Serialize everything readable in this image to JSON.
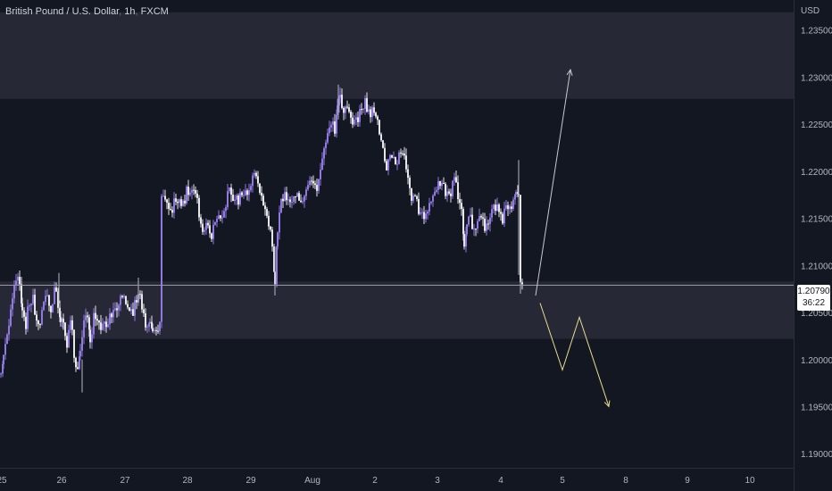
{
  "header": {
    "symbol": "British Pound / U.S. Dollar",
    "interval": "1h",
    "exchange": "FXCM",
    "currency": "USD"
  },
  "price_tag": {
    "price": "1.20790",
    "countdown": "36:22"
  },
  "colors": {
    "background": "#131722",
    "zone": "#262935",
    "up_candle": "#8f78e0",
    "down_candle": "#e6e6ea",
    "bullish_arrow": "#c9c9cf",
    "bearish_arrow": "#e6dc8c",
    "price_line": "#9598a1"
  },
  "chart_data": {
    "type": "candlestick",
    "ylim": [
      1.1885,
      1.2382
    ],
    "y_ticks": [
      "1.23500",
      "1.23000",
      "1.22500",
      "1.22000",
      "1.21500",
      "1.21000",
      "1.20500",
      "1.20000",
      "1.19500",
      "1.19000"
    ],
    "x_ticks": [
      "25",
      "26",
      "27",
      "28",
      "29",
      "Aug",
      "2",
      "3",
      "4",
      "5",
      "8",
      "9",
      "10"
    ],
    "last_price": 1.2079,
    "zones": [
      {
        "from": 1.2277,
        "to": 1.2369
      },
      {
        "from": 1.2022,
        "to": 1.2083
      }
    ],
    "anchors": [
      [
        0,
        1.1985
      ],
      [
        3,
        1.2
      ],
      [
        7,
        1.2025
      ],
      [
        11,
        1.2055
      ],
      [
        15,
        1.2075
      ],
      [
        19,
        1.2085
      ],
      [
        24,
        1.206
      ],
      [
        28,
        1.204
      ],
      [
        32,
        1.2055
      ],
      [
        36,
        1.206
      ],
      [
        40,
        1.2045
      ],
      [
        44,
        1.204
      ],
      [
        48,
        1.206
      ],
      [
        52,
        1.207
      ],
      [
        56,
        1.2055
      ],
      [
        60,
        1.2075
      ],
      [
        64,
        1.2055
      ],
      [
        67,
        1.204
      ],
      [
        70,
        1.2045
      ],
      [
        74,
        1.202
      ],
      [
        78,
        1.204
      ],
      [
        82,
        1.201
      ],
      [
        86,
        1.199
      ],
      [
        89,
        1.201
      ],
      [
        93,
        1.2035
      ],
      [
        97,
        1.2045
      ],
      [
        100,
        1.2025
      ],
      [
        104,
        1.2045
      ],
      [
        108,
        1.2035
      ],
      [
        112,
        1.204
      ],
      [
        116,
        1.2045
      ],
      [
        120,
        1.2035
      ],
      [
        124,
        1.2045
      ],
      [
        128,
        1.2055
      ],
      [
        132,
        1.206
      ],
      [
        136,
        1.2065
      ],
      [
        140,
        1.2055
      ],
      [
        144,
        1.206
      ],
      [
        148,
        1.205
      ],
      [
        152,
        1.206
      ],
      [
        156,
        1.207
      ],
      [
        160,
        1.205
      ],
      [
        164,
        1.2035
      ],
      [
        167,
        1.204
      ],
      [
        170,
        1.203
      ],
      [
        174,
        1.2035
      ],
      [
        178,
        1.204
      ],
      [
        180,
        1.2165
      ],
      [
        184,
        1.217
      ],
      [
        188,
        1.2165
      ],
      [
        192,
        1.216
      ],
      [
        196,
        1.2165
      ],
      [
        200,
        1.2165
      ],
      [
        204,
        1.217
      ],
      [
        208,
        1.2175
      ],
      [
        212,
        1.217
      ],
      [
        216,
        1.218
      ],
      [
        220,
        1.2175
      ],
      [
        224,
        1.214
      ],
      [
        228,
        1.213
      ],
      [
        232,
        1.2145
      ],
      [
        236,
        1.2135
      ],
      [
        240,
        1.214
      ],
      [
        244,
        1.215
      ],
      [
        248,
        1.2155
      ],
      [
        252,
        1.2165
      ],
      [
        256,
        1.2175
      ],
      [
        260,
        1.2172
      ],
      [
        264,
        1.2175
      ],
      [
        268,
        1.2172
      ],
      [
        272,
        1.217
      ],
      [
        276,
        1.218
      ],
      [
        280,
        1.219
      ],
      [
        284,
        1.2195
      ],
      [
        288,
        1.2185
      ],
      [
        292,
        1.2175
      ],
      [
        296,
        1.216
      ],
      [
        300,
        1.214
      ],
      [
        304,
        1.212
      ],
      [
        307,
        1.208
      ],
      [
        310,
        1.214
      ],
      [
        314,
        1.2165
      ],
      [
        318,
        1.217
      ],
      [
        322,
        1.2172
      ],
      [
        326,
        1.217
      ],
      [
        330,
        1.2165
      ],
      [
        334,
        1.2175
      ],
      [
        338,
        1.2172
      ],
      [
        342,
        1.2178
      ],
      [
        346,
        1.2185
      ],
      [
        350,
        1.219
      ],
      [
        354,
        1.2185
      ],
      [
        358,
        1.22
      ],
      [
        362,
        1.222
      ],
      [
        366,
        1.2245
      ],
      [
        370,
        1.225
      ],
      [
        374,
        1.224
      ],
      [
        377,
        1.227
      ],
      [
        380,
        1.2282
      ],
      [
        384,
        1.227
      ],
      [
        388,
        1.2262
      ],
      [
        392,
        1.2255
      ],
      [
        396,
        1.2258
      ],
      [
        400,
        1.226
      ],
      [
        404,
        1.2262
      ],
      [
        408,
        1.227
      ],
      [
        412,
        1.2268
      ],
      [
        416,
        1.226
      ],
      [
        420,
        1.2255
      ],
      [
        424,
        1.2248
      ],
      [
        428,
        1.2225
      ],
      [
        432,
        1.22
      ],
      [
        436,
        1.2212
      ],
      [
        440,
        1.2222
      ],
      [
        444,
        1.221
      ],
      [
        448,
        1.2215
      ],
      [
        452,
        1.221
      ],
      [
        456,
        1.22
      ],
      [
        460,
        1.2175
      ],
      [
        464,
        1.2165
      ],
      [
        468,
        1.216
      ],
      [
        472,
        1.2158
      ],
      [
        476,
        1.215
      ],
      [
        480,
        1.216
      ],
      [
        484,
        1.2175
      ],
      [
        488,
        1.2185
      ],
      [
        492,
        1.218
      ],
      [
        496,
        1.2178
      ],
      [
        500,
        1.2182
      ],
      [
        504,
        1.218
      ],
      [
        508,
        1.2185
      ],
      [
        512,
        1.2175
      ],
      [
        516,
        1.216
      ],
      [
        519,
        1.212
      ],
      [
        522,
        1.214
      ],
      [
        526,
        1.215
      ],
      [
        530,
        1.2145
      ],
      [
        534,
        1.215
      ],
      [
        538,
        1.2148
      ],
      [
        542,
        1.2145
      ],
      [
        546,
        1.215
      ],
      [
        550,
        1.2155
      ],
      [
        554,
        1.2158
      ],
      [
        558,
        1.216
      ],
      [
        562,
        1.215
      ],
      [
        566,
        1.2155
      ],
      [
        570,
        1.2162
      ],
      [
        574,
        1.217
      ],
      [
        577,
        1.2178
      ],
      [
        580,
        1.2175
      ],
      [
        582,
        1.2082
      ],
      [
        585,
        1.2079
      ]
    ],
    "projections": [
      {
        "name": "bullish",
        "points": [
          [
            600,
            1.2068
          ],
          [
            639,
            1.2308
          ]
        ]
      },
      {
        "name": "bearish",
        "points": [
          [
            605,
            1.206
          ],
          [
            630,
            1.1989
          ],
          [
            649,
            1.2045
          ],
          [
            682,
            1.195
          ]
        ]
      }
    ]
  }
}
